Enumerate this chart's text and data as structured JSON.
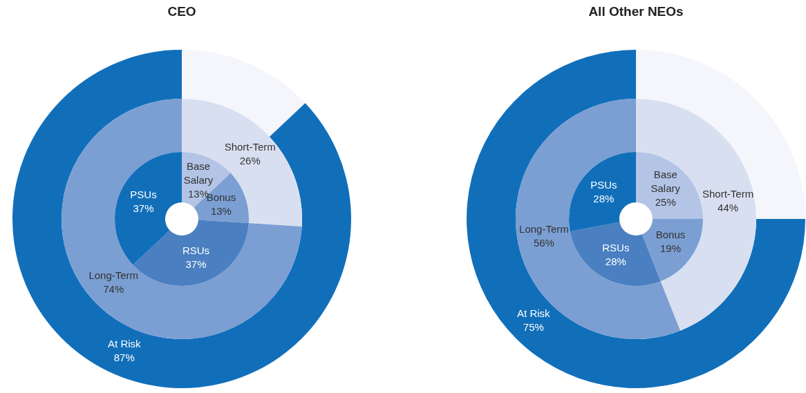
{
  "chart_data": [
    {
      "type": "donut",
      "title": "CEO",
      "categories": [
        null,
        "At Risk"
      ],
      "values": [
        13,
        87
      ],
      "colors": [
        "#f4f6fb",
        "#116fba"
      ],
      "value_labels": [
        null,
        "87%"
      ]
    },
    {
      "type": "donut",
      "categories": [
        "Short-Term",
        "Long-Term"
      ],
      "values": [
        26,
        74
      ],
      "colors": [
        "#d8dff0",
        "#7b9fd3"
      ],
      "value_labels": [
        "26%",
        "74%"
      ]
    },
    {
      "type": "donut",
      "categories": [
        "Base Salary",
        "Bonus",
        "RSUs",
        "PSUs"
      ],
      "values": [
        13,
        13,
        37,
        37
      ],
      "colors": [
        "#b3c4e6",
        "#7b9fd3",
        "#4a7fc1",
        "#116fba"
      ],
      "value_labels": [
        "13%",
        "13%",
        "37%",
        "37%"
      ]
    },
    {
      "type": "donut",
      "title": "All Other NEOs",
      "categories": [
        null,
        "At Risk"
      ],
      "values": [
        25,
        75
      ],
      "colors": [
        "#f4f6fb",
        "#116fba"
      ],
      "value_labels": [
        null,
        "75%"
      ]
    },
    {
      "type": "donut",
      "categories": [
        "Short-Term",
        "Long-Term"
      ],
      "values": [
        44,
        56
      ],
      "colors": [
        "#d8dff0",
        "#7b9fd3"
      ],
      "value_labels": [
        "44%",
        "56%"
      ]
    },
    {
      "type": "donut",
      "categories": [
        "Base Salary",
        "Bonus",
        "RSUs",
        "PSUs"
      ],
      "values": [
        25,
        19,
        28,
        28
      ],
      "colors": [
        "#b3c4e6",
        "#7b9fd3",
        "#4a7fc1",
        "#116fba"
      ],
      "value_labels": [
        "25%",
        "19%",
        "28%",
        "28%"
      ]
    }
  ]
}
